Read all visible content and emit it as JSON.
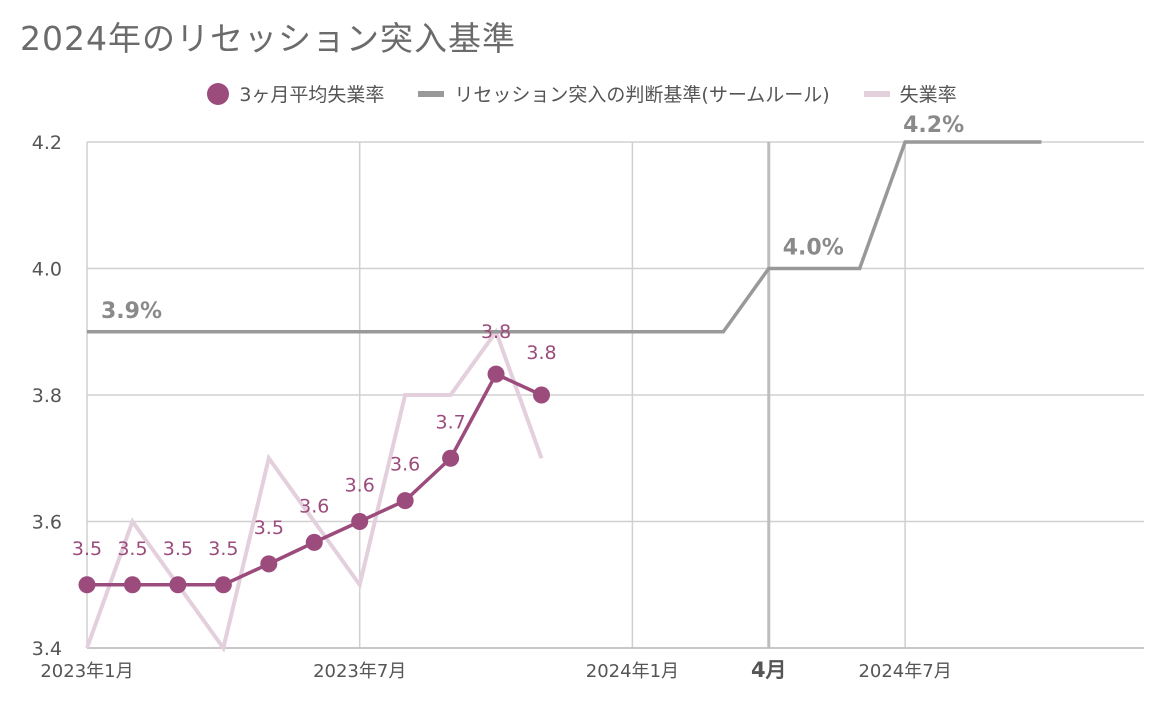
{
  "title": "2024年のリセッション突入基準",
  "colors": {
    "avg3m": "#9b4c7c",
    "samrule": "#999999",
    "rate": "#e3d0dc",
    "grid": "#d0d0d0",
    "vline": "#bdbdbd",
    "text": "#555555"
  },
  "legend": [
    {
      "label": "3ヶ月平均失業率",
      "shape": "dot",
      "color": "#9b4c7c"
    },
    {
      "label": "リセッション突入の判断基準(サームルール)",
      "shape": "line",
      "color": "#999999"
    },
    {
      "label": "失業率",
      "shape": "line",
      "color": "#e3d0dc"
    }
  ],
  "chart_data": {
    "type": "line",
    "title": "2024年のリセッション突入基準",
    "ylim": [
      3.4,
      4.2
    ],
    "yticks": [
      "3.4",
      "3.6",
      "3.8",
      "4.0",
      "4.2"
    ],
    "xlim": [
      "2023-01",
      "2024-10"
    ],
    "xticks": [
      {
        "label": "2023年1月",
        "x": "2023-01",
        "bold": false
      },
      {
        "label": "2023年7月",
        "x": "2023-07",
        "bold": false
      },
      {
        "label": "2024年1月",
        "x": "2024-01",
        "bold": false
      },
      {
        "label": "4月",
        "x": "2024-04",
        "bold": true
      },
      {
        "label": "2024年7月",
        "x": "2024-07",
        "bold": false
      }
    ],
    "grid": true,
    "legend_position": "top",
    "series": [
      {
        "name": "3ヶ月平均失業率",
        "color": "#9b4c7c",
        "markers": true,
        "x": [
          "2023-01",
          "2023-02",
          "2023-03",
          "2023-04",
          "2023-05",
          "2023-06",
          "2023-07",
          "2023-08",
          "2023-09",
          "2023-10",
          "2023-11"
        ],
        "values": [
          3.5,
          3.5,
          3.5,
          3.5,
          3.533,
          3.567,
          3.6,
          3.633,
          3.7,
          3.833,
          3.8
        ],
        "labels": [
          "3.5",
          "3.5",
          "3.5",
          "3.5",
          "3.5",
          "3.6",
          "3.6",
          "3.6",
          "3.7",
          "3.8",
          "3.8"
        ]
      },
      {
        "name": "リセッション突入の判断基準(サームルール)",
        "color": "#999999",
        "markers": false,
        "x": [
          "2023-01",
          "2024-03",
          "2024-04",
          "2024-06",
          "2024-07",
          "2024-10"
        ],
        "values": [
          3.9,
          3.9,
          4.0,
          4.0,
          4.2,
          4.2
        ]
      },
      {
        "name": "失業率",
        "color": "#e3d0dc",
        "markers": false,
        "x": [
          "2023-01",
          "2023-02",
          "2023-03",
          "2023-04",
          "2023-05",
          "2023-06",
          "2023-07",
          "2023-08",
          "2023-09",
          "2023-10",
          "2023-11"
        ],
        "values": [
          3.4,
          3.6,
          3.5,
          3.4,
          3.7,
          3.6,
          3.5,
          3.8,
          3.8,
          3.9,
          3.7
        ]
      }
    ],
    "annotations": [
      {
        "text": "3.9%",
        "x": "2023-01",
        "y": 3.9
      },
      {
        "text": "4.0%",
        "x": "2024-04",
        "y": 4.0
      },
      {
        "text": "4.2%",
        "x": "2024-07",
        "y": 4.2
      }
    ]
  }
}
